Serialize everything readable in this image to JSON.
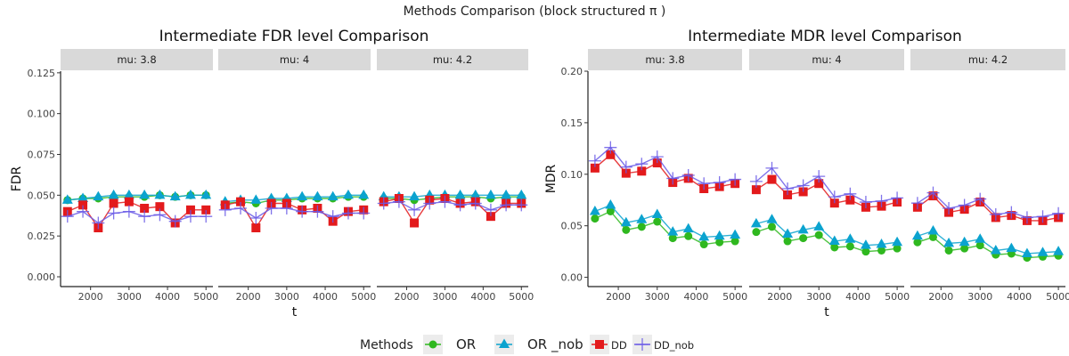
{
  "suptitle": "Methods Comparison (block structured π )",
  "legend": {
    "title": "Methods",
    "entries": [
      {
        "label": "OR",
        "shape": "circle",
        "color": "#2fb81f"
      },
      {
        "label": "OR _nob",
        "shape": "triangle",
        "color": "#0ba3cf"
      },
      {
        "label": "DD",
        "shape": "square",
        "color": "#e31a1c"
      },
      {
        "label": "DD_nob",
        "shape": "plus",
        "color": "#6a5ae6"
      }
    ]
  },
  "chart_data": [
    {
      "type": "line",
      "title": "Intermediate FDR level Comparison",
      "xlabel": "t",
      "ylabel": "FDR",
      "xlim": [
        1220,
        5180
      ],
      "ylim": [
        -0.006,
        0.126
      ],
      "xticks": [
        2000,
        3000,
        4000,
        5000
      ],
      "yticks": [
        0.0,
        0.025,
        0.05,
        0.075,
        0.1,
        0.125
      ],
      "ytick_labels": [
        "0.000",
        "0.025",
        "0.050",
        "0.075",
        "0.100",
        "0.125"
      ],
      "x": [
        1400,
        1800,
        2200,
        2600,
        3000,
        3400,
        3800,
        4200,
        4600,
        5000
      ],
      "panels": [
        {
          "strip": "mu: 3.8",
          "series": [
            {
              "name": "OR",
              "values": [
                0.047,
                0.048,
                0.048,
                0.049,
                0.049,
                0.049,
                0.05,
                0.049,
                0.05,
                0.05
              ]
            },
            {
              "name": "OR _nob",
              "values": [
                0.047,
                0.048,
                0.049,
                0.05,
                0.05,
                0.05,
                0.05,
                0.049,
                0.05,
                0.05
              ]
            },
            {
              "name": "DD",
              "values": [
                0.04,
                0.044,
                0.03,
                0.045,
                0.046,
                0.042,
                0.043,
                0.033,
                0.041,
                0.041
              ]
            },
            {
              "name": "DD_nob",
              "values": [
                0.037,
                0.04,
                0.033,
                0.039,
                0.04,
                0.037,
                0.038,
                0.034,
                0.037,
                0.037
              ]
            }
          ]
        },
        {
          "strip": "mu: 4",
          "series": [
            {
              "name": "OR",
              "values": [
                0.045,
                0.046,
                0.045,
                0.047,
                0.047,
                0.048,
                0.048,
                0.048,
                0.049,
                0.049
              ]
            },
            {
              "name": "OR _nob",
              "values": [
                0.046,
                0.047,
                0.047,
                0.048,
                0.048,
                0.049,
                0.049,
                0.049,
                0.05,
                0.05
              ]
            },
            {
              "name": "DD",
              "values": [
                0.044,
                0.046,
                0.03,
                0.045,
                0.045,
                0.041,
                0.042,
                0.034,
                0.04,
                0.041
              ]
            },
            {
              "name": "DD_nob",
              "values": [
                0.041,
                0.042,
                0.036,
                0.042,
                0.042,
                0.04,
                0.04,
                0.037,
                0.039,
                0.039
              ]
            }
          ]
        },
        {
          "strip": "mu: 4.2",
          "series": [
            {
              "name": "OR",
              "values": [
                0.048,
                0.048,
                0.047,
                0.048,
                0.049,
                0.049,
                0.049,
                0.048,
                0.049,
                0.049
              ]
            },
            {
              "name": "OR _nob",
              "values": [
                0.049,
                0.049,
                0.049,
                0.05,
                0.05,
                0.05,
                0.05,
                0.05,
                0.05,
                0.05
              ]
            },
            {
              "name": "DD",
              "values": [
                0.046,
                0.048,
                0.033,
                0.047,
                0.048,
                0.045,
                0.046,
                0.037,
                0.045,
                0.045
              ]
            },
            {
              "name": "DD_nob",
              "values": [
                0.045,
                0.046,
                0.041,
                0.045,
                0.046,
                0.044,
                0.045,
                0.041,
                0.044,
                0.044
              ]
            }
          ]
        }
      ]
    },
    {
      "type": "line",
      "title": "Intermediate MDR level Comparison",
      "xlabel": "t",
      "ylabel": "MDR",
      "xlim": [
        1220,
        5180
      ],
      "ylim": [
        -0.009,
        0.2
      ],
      "xticks": [
        2000,
        3000,
        4000,
        5000
      ],
      "yticks": [
        0.0,
        0.05,
        0.1,
        0.15,
        0.2
      ],
      "ytick_labels": [
        "0.00",
        "0.05",
        "0.10",
        "0.15",
        "0.20"
      ],
      "x": [
        1400,
        1800,
        2200,
        2600,
        3000,
        3400,
        3800,
        4200,
        4600,
        5000
      ],
      "panels": [
        {
          "strip": "mu: 3.8",
          "series": [
            {
              "name": "OR",
              "values": [
                0.057,
                0.064,
                0.046,
                0.049,
                0.054,
                0.038,
                0.04,
                0.032,
                0.034,
                0.035
              ]
            },
            {
              "name": "OR _nob",
              "values": [
                0.064,
                0.07,
                0.053,
                0.056,
                0.061,
                0.044,
                0.047,
                0.039,
                0.04,
                0.041
              ]
            },
            {
              "name": "DD",
              "values": [
                0.106,
                0.119,
                0.101,
                0.103,
                0.111,
                0.092,
                0.096,
                0.086,
                0.088,
                0.091
              ]
            },
            {
              "name": "DD_nob",
              "values": [
                0.113,
                0.126,
                0.107,
                0.11,
                0.117,
                0.096,
                0.099,
                0.091,
                0.092,
                0.095
              ]
            }
          ]
        },
        {
          "strip": "mu: 4",
          "series": [
            {
              "name": "OR",
              "values": [
                0.044,
                0.049,
                0.035,
                0.038,
                0.041,
                0.029,
                0.03,
                0.025,
                0.026,
                0.028
              ]
            },
            {
              "name": "OR _nob",
              "values": [
                0.052,
                0.056,
                0.042,
                0.046,
                0.049,
                0.035,
                0.037,
                0.031,
                0.032,
                0.034
              ]
            },
            {
              "name": "DD",
              "values": [
                0.085,
                0.095,
                0.08,
                0.083,
                0.091,
                0.072,
                0.075,
                0.068,
                0.069,
                0.073
              ]
            },
            {
              "name": "DD_nob",
              "values": [
                0.093,
                0.106,
                0.086,
                0.089,
                0.098,
                0.078,
                0.081,
                0.073,
                0.074,
                0.077
              ]
            }
          ]
        },
        {
          "strip": "mu: 4.2",
          "series": [
            {
              "name": "OR",
              "values": [
                0.034,
                0.039,
                0.026,
                0.028,
                0.031,
                0.022,
                0.023,
                0.019,
                0.02,
                0.021
              ]
            },
            {
              "name": "OR _nob",
              "values": [
                0.04,
                0.045,
                0.033,
                0.034,
                0.037,
                0.026,
                0.028,
                0.023,
                0.024,
                0.025
              ]
            },
            {
              "name": "DD",
              "values": [
                0.068,
                0.079,
                0.063,
                0.066,
                0.073,
                0.058,
                0.06,
                0.055,
                0.055,
                0.058
              ]
            },
            {
              "name": "DD_nob",
              "values": [
                0.072,
                0.082,
                0.067,
                0.07,
                0.076,
                0.061,
                0.063,
                0.058,
                0.059,
                0.062
              ]
            }
          ]
        }
      ]
    }
  ]
}
